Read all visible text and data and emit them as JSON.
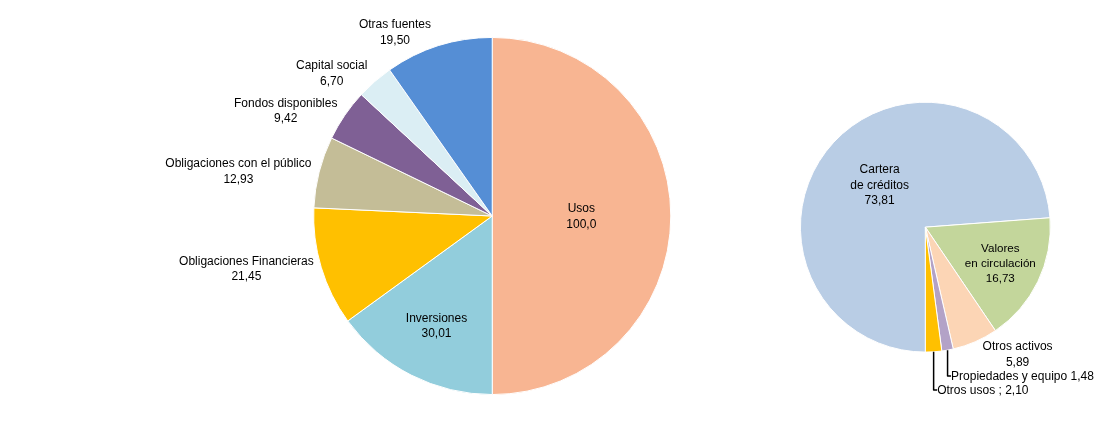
{
  "chart_data": [
    {
      "type": "pie",
      "categories": [
        "Usos",
        "Inversiones",
        "Obligaciones Financieras",
        "Obligaciones con el público",
        "Fondos disponibles",
        "Capital social",
        "Otras fuentes"
      ],
      "values": [
        100.0,
        30.01,
        21.45,
        12.93,
        9.42,
        6.7,
        19.5
      ],
      "value_labels": [
        "100,0",
        "30,01",
        "21,45",
        "12,93",
        "9,42",
        "6,70",
        "19,50"
      ],
      "colors": [
        "#f8b592",
        "#92cddc",
        "#ffc000",
        "#c4bd97",
        "#7f6095",
        "#dbeef4",
        "#558ed5"
      ]
    },
    {
      "type": "pie",
      "categories": [
        "Cartera de créditos",
        "Valores en circulación",
        "Otros activos",
        "Propiedades y equipo",
        "Otros usos"
      ],
      "values": [
        73.81,
        16.73,
        5.89,
        1.48,
        2.1
      ],
      "value_labels": [
        "73,81",
        "16,73",
        "5,89",
        "1,48",
        "2,10"
      ],
      "colors": [
        "#b9cde5",
        "#c3d69b",
        "#fcd5b5",
        "#b3a2c7",
        "#ffc000"
      ]
    }
  ]
}
